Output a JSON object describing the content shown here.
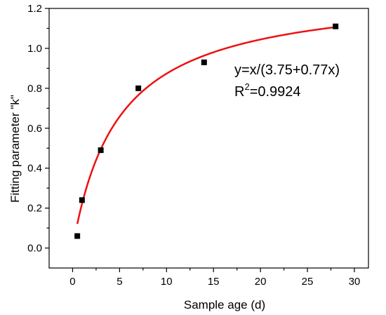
{
  "chart_data": {
    "type": "scatter",
    "xlabel": "Sample age (d)",
    "ylabel": "Fitting parameter \"k\"",
    "xlim": [
      -2.5,
      31.5
    ],
    "ylim": [
      -0.1,
      1.2
    ],
    "xticks": [
      0,
      5,
      10,
      15,
      20,
      25,
      30
    ],
    "yticks": [
      0.0,
      0.2,
      0.4,
      0.6,
      0.8,
      1.0,
      1.2
    ],
    "xtick_labels": [
      "0",
      "5",
      "10",
      "15",
      "20",
      "25",
      "30"
    ],
    "ytick_labels": [
      "0.0",
      "0.2",
      "0.4",
      "0.6",
      "0.8",
      "1.0",
      "1.2"
    ],
    "grid": false,
    "series": [
      {
        "type": "scatter",
        "marker": "square",
        "color": "#000000",
        "x": [
          0.5,
          1,
          3,
          7,
          14,
          28
        ],
        "y": [
          0.06,
          0.24,
          0.49,
          0.8,
          0.93,
          1.11
        ]
      },
      {
        "type": "line",
        "color": "#ee1111",
        "fit": {
          "a": 3.75,
          "b": 0.77
        },
        "x_range": [
          0.5,
          28
        ]
      }
    ],
    "annotations": {
      "equation": "y=x/(3.75+0.77x)",
      "r_label": "R",
      "r_exponent": "2",
      "r_value": "=0.9924"
    }
  }
}
